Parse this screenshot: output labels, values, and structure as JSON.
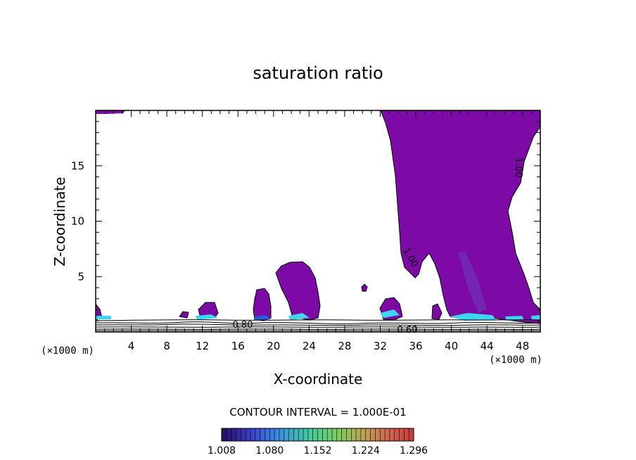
{
  "chart_data": {
    "type": "contour",
    "title": "saturation ratio",
    "xlabel": "X-coordinate",
    "ylabel": "Z-coordinate",
    "x_unit": "(×1000 m)",
    "y_unit": "(×1000 m)",
    "xlim": [
      0,
      50
    ],
    "ylim": [
      0,
      20
    ],
    "x_ticks": [
      4,
      8,
      12,
      16,
      20,
      24,
      28,
      32,
      36,
      40,
      44,
      48
    ],
    "y_ticks": [
      5,
      10,
      15
    ],
    "contour_labels": [
      "1.00",
      "1.00",
      "0.80",
      "0.60"
    ],
    "contour_interval_text": "CONTOUR INTERVAL = 1.000E-01",
    "colorbar": {
      "ticks": [
        "1.008",
        "1.080",
        "1.152",
        "1.224",
        "1.296"
      ],
      "range": [
        1.008,
        1.296
      ]
    },
    "colors": {
      "fill": "#7d0aa6",
      "cyan": "#3fd4ef",
      "blue": "#2a5bd6"
    }
  }
}
